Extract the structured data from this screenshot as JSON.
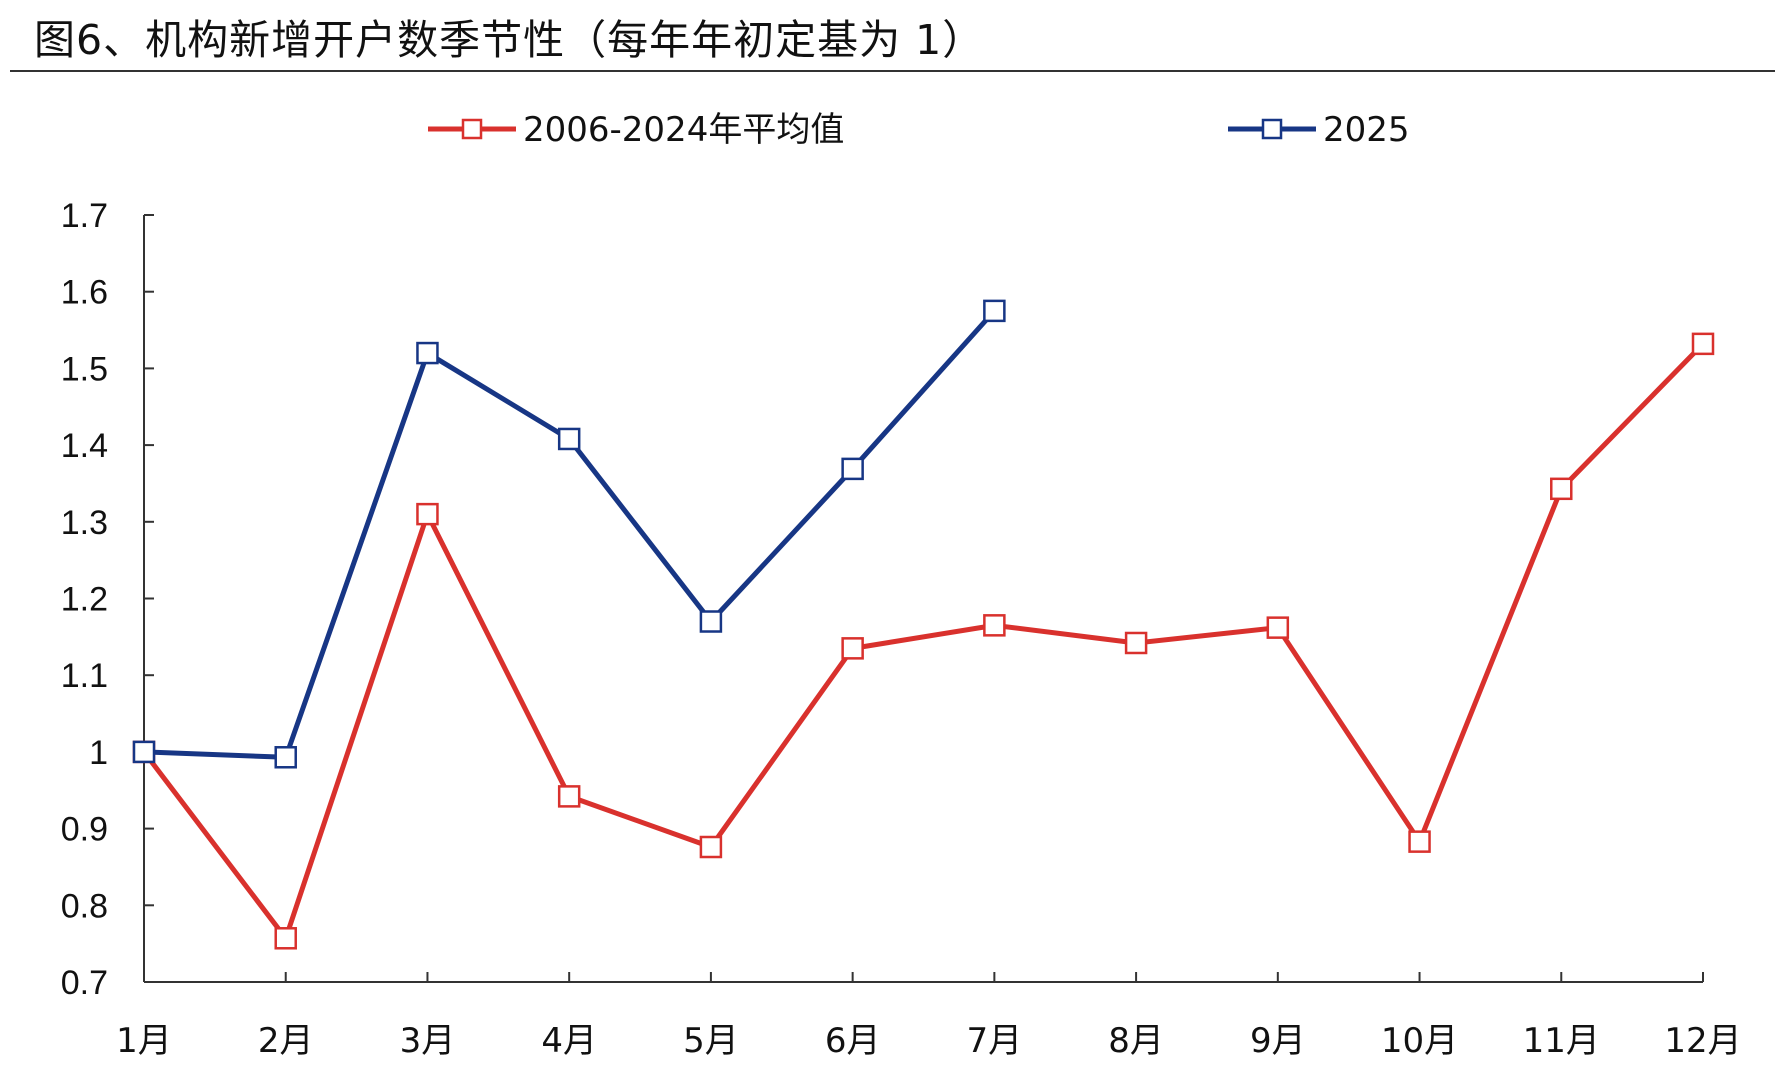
{
  "page": {
    "title": "图6、机构新增开户数季节性（每年年初定基为 1）"
  },
  "chart_data": {
    "type": "line",
    "title": "图6、机构新增开户数季节性（每年年初定基为 1）",
    "xlabel": "",
    "ylabel": "",
    "categories": [
      "1月",
      "2月",
      "3月",
      "4月",
      "5月",
      "6月",
      "7月",
      "8月",
      "9月",
      "10月",
      "11月",
      "12月"
    ],
    "series": [
      {
        "name": "2006-2024年平均值",
        "color": "#d9312d",
        "values": [
          1.0,
          0.757,
          1.31,
          0.942,
          0.876,
          1.135,
          1.165,
          1.142,
          1.162,
          0.883,
          1.343,
          1.532
        ]
      },
      {
        "name": "2025",
        "color": "#173685",
        "values": [
          1.0,
          0.993,
          1.52,
          1.408,
          1.17,
          1.369,
          1.575,
          null,
          null,
          null,
          null,
          null
        ]
      }
    ],
    "ylim": [
      0.7,
      1.7
    ],
    "yticks": [
      "0.7",
      "0.8",
      "0.9",
      "1",
      "1.1",
      "1.2",
      "1.3",
      "1.4",
      "1.5",
      "1.6",
      "1.7"
    ],
    "grid": false,
    "legend_position": "top-center",
    "marker": "open-square"
  }
}
